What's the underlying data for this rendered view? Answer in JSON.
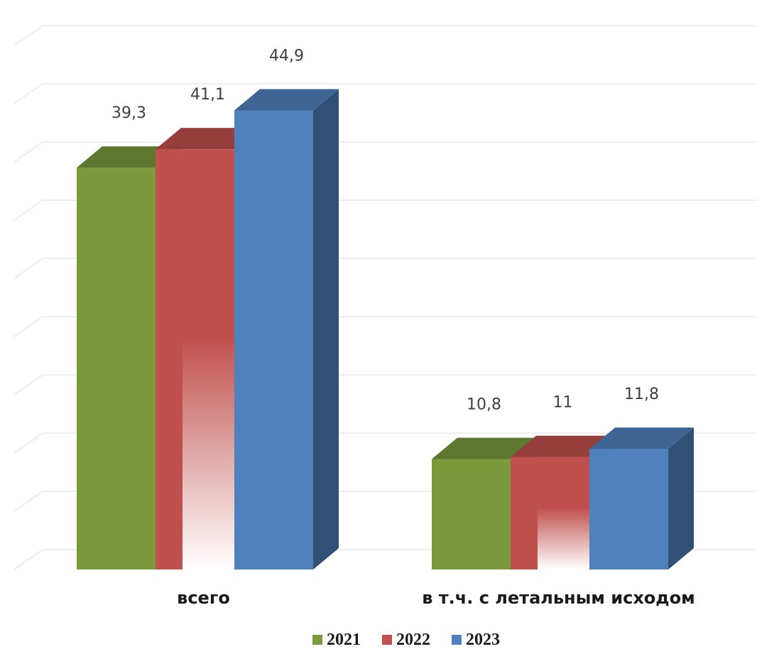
{
  "chart_data": {
    "type": "bar",
    "style": "3d-clustered",
    "categories": [
      "всего",
      "в т.ч. с летальным исходом"
    ],
    "series": [
      {
        "name": "2021",
        "values": [
          39.3,
          10.8
        ],
        "labels": [
          "39,3",
          "10,8"
        ],
        "color": "#7A9A3C"
      },
      {
        "name": "2022",
        "values": [
          41.1,
          11
        ],
        "labels": [
          "41,1",
          "11"
        ],
        "color": "#C0504D"
      },
      {
        "name": "2023",
        "values": [
          44.9,
          11.8
        ],
        "labels": [
          "44,9",
          "11,8"
        ],
        "color": "#4F81BD"
      }
    ],
    "ylim": [
      0,
      50
    ],
    "grid": true,
    "legend": "bottom"
  }
}
